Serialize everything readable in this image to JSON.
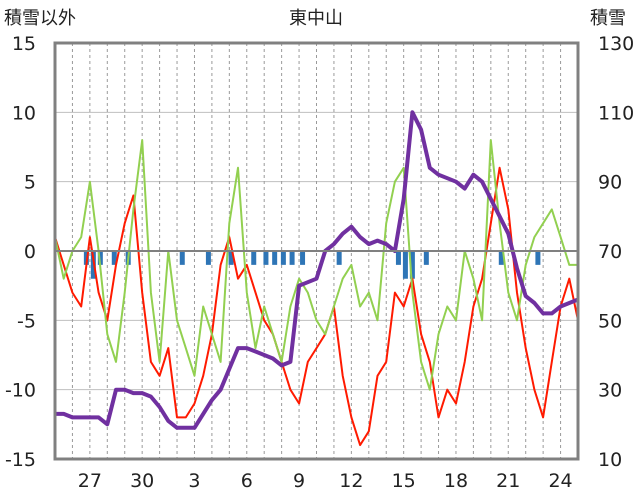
{
  "chart_data": {
    "type": "line",
    "title": "東中山",
    "left_axis": {
      "label": "積雪以外",
      "ylim": [
        -15,
        15
      ],
      "ticks": [
        15,
        10,
        5,
        0,
        -5,
        -10,
        -15
      ]
    },
    "right_axis": {
      "label": "積雪",
      "ylim": [
        10,
        130
      ],
      "ticks": [
        130,
        110,
        90,
        70,
        50,
        30,
        10
      ]
    },
    "x_ticks": [
      "27",
      "30",
      "3",
      "6",
      "9",
      "12",
      "15",
      "18",
      "21",
      "24"
    ],
    "x_tick_days": [
      2,
      5,
      8,
      11,
      14,
      17,
      20,
      23,
      26,
      29
    ],
    "x_range": [
      0,
      30
    ],
    "grid": true,
    "colors": {
      "red_series": "#ff1a00",
      "green_series": "#92d050",
      "purple_series": "#7030a0",
      "blue_bars": "#2e75b6",
      "frame": "#808080"
    },
    "series": [
      {
        "axis": "left",
        "color": "#ff1a00",
        "x": [
          0,
          0.5,
          1,
          1.5,
          2,
          2.5,
          3,
          3.5,
          4,
          4.5,
          5,
          5.5,
          6,
          6.5,
          7,
          7.5,
          8,
          8.5,
          9,
          9.5,
          10,
          10.5,
          11,
          11.5,
          12,
          12.5,
          13,
          13.5,
          14,
          14.5,
          15,
          15.5,
          16,
          16.5,
          17,
          17.5,
          18,
          18.5,
          19,
          19.5,
          20,
          20.5,
          21,
          21.5,
          22,
          22.5,
          23,
          23.5,
          24,
          24.5,
          25,
          25.5,
          26,
          26.5,
          27,
          27.5,
          28,
          28.5,
          29,
          29.5,
          30
        ],
        "values": [
          1,
          -1,
          -3,
          -4,
          1,
          -3,
          -5,
          -1,
          2,
          4,
          -3,
          -8,
          -9,
          -7,
          -12,
          -12,
          -11,
          -9,
          -6,
          -1,
          1,
          -2,
          -1,
          -3,
          -5,
          -6,
          -8,
          -10,
          -11,
          -8,
          -7,
          -6,
          -4,
          -9,
          -12,
          -14,
          -13,
          -9,
          -8,
          -3,
          -4,
          -2,
          -6,
          -8,
          -12,
          -10,
          -11,
          -8,
          -4,
          -2,
          2,
          6,
          3,
          -3,
          -7,
          -10,
          -12,
          -8,
          -4,
          -2,
          -5
        ]
      },
      {
        "axis": "left",
        "color": "#92d050",
        "x": [
          0,
          0.5,
          1,
          1.5,
          2,
          2.5,
          3,
          3.5,
          4,
          4.5,
          5,
          5.5,
          6,
          6.5,
          7,
          7.5,
          8,
          8.5,
          9,
          9.5,
          10,
          10.5,
          11,
          11.5,
          12,
          12.5,
          13,
          13.5,
          14,
          14.5,
          15,
          15.5,
          16,
          16.5,
          17,
          17.5,
          18,
          18.5,
          19,
          19.5,
          20,
          20.5,
          21,
          21.5,
          22,
          22.5,
          23,
          23.5,
          24,
          24.5,
          25,
          25.5,
          26,
          26.5,
          27,
          27.5,
          28,
          28.5,
          29,
          29.5,
          30
        ],
        "values": [
          1,
          -2,
          0,
          1,
          5,
          0,
          -6,
          -8,
          -3,
          3,
          8,
          -3,
          -8,
          0,
          -5,
          -7,
          -9,
          -4,
          -6,
          -8,
          2,
          6,
          -3,
          -7,
          -4,
          -6,
          -8,
          -4,
          -2,
          -3,
          -5,
          -6,
          -4,
          -2,
          -1,
          -4,
          -3,
          -5,
          2,
          5,
          6,
          -3,
          -8,
          -10,
          -6,
          -4,
          -5,
          0,
          -2,
          -5,
          8,
          2,
          -3,
          -5,
          -1,
          1,
          2,
          3,
          1,
          -1,
          -1
        ]
      },
      {
        "axis": "right",
        "color": "#7030a0",
        "x": [
          0,
          0.5,
          1,
          1.5,
          2,
          2.5,
          3,
          3.5,
          4,
          4.5,
          5,
          5.5,
          6,
          6.5,
          7,
          7.5,
          8,
          8.5,
          9,
          9.5,
          10,
          10.5,
          11,
          11.5,
          12,
          12.5,
          13,
          13.5,
          14,
          14.5,
          15,
          15.5,
          16,
          16.5,
          17,
          17.5,
          18,
          18.5,
          19,
          19.5,
          20,
          20.5,
          21,
          21.5,
          22,
          22.5,
          23,
          23.5,
          24,
          24.5,
          25,
          25.5,
          26,
          26.5,
          27,
          27.5,
          28,
          28.5,
          29,
          29.5,
          30
        ],
        "values": [
          23,
          23,
          22,
          22,
          22,
          22,
          20,
          30,
          30,
          29,
          29,
          28,
          25,
          21,
          19,
          19,
          19,
          23,
          27,
          30,
          36,
          42,
          42,
          41,
          40,
          39,
          37,
          38,
          60,
          61,
          62,
          70,
          72,
          75,
          77,
          74,
          72,
          73,
          72,
          70,
          85,
          110,
          105,
          94,
          92,
          91,
          90,
          88,
          92,
          90,
          85,
          80,
          75,
          65,
          57,
          55,
          52,
          52,
          54,
          55,
          56
        ]
      }
    ],
    "bars": {
      "axis": "left",
      "color": "#2e75b6",
      "x": [
        1.8,
        2.2,
        2.6,
        3.4,
        4.2,
        7.3,
        8.8,
        10.1,
        11.4,
        12.1,
        12.6,
        13.1,
        13.6,
        14.2,
        16.3,
        19.7,
        20.1,
        20.5,
        21.3,
        25.6,
        27.7
      ],
      "values": [
        -1,
        -2,
        -1,
        -1,
        -1,
        -1,
        -1,
        -1,
        -1,
        -1,
        -1,
        -1,
        -1,
        -1,
        -1,
        -1,
        -2,
        -2,
        -1,
        -1,
        -1
      ]
    }
  }
}
